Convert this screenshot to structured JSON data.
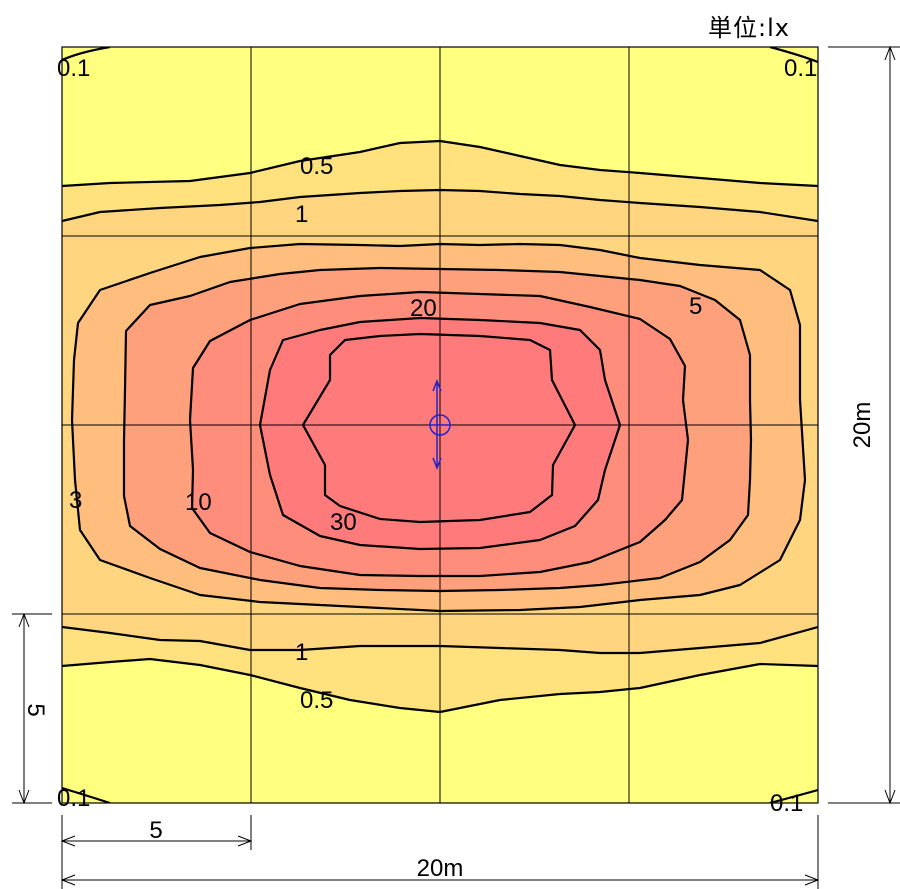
{
  "unit_label": "単位:lx",
  "dimensions": {
    "width_label": "20m",
    "height_label": "20m",
    "grid_spacing_label_x": "5",
    "grid_spacing_label_y": "5"
  },
  "colors": {
    "level_0": "#ffff80",
    "level_0_5": "#ffe17e",
    "level_1": "#ffd580",
    "level_5": "#ffbe7d",
    "level_10": "#ffa07d",
    "level_20": "#ff8d7c",
    "level_30": "#ff7b7b",
    "fixture": "#2222cc"
  },
  "contour_labels": {
    "top_left_corner": "0.1",
    "top_right_corner": "0.1",
    "bottom_left_corner": "0.1",
    "bottom_right_corner": "0.1",
    "top_0_5": "0.5",
    "top_1": "1",
    "bottom_1": "1",
    "bottom_0_5": "0.5",
    "left_3": "3",
    "right_5": "5",
    "inner_10": "10",
    "inner_20": "20",
    "inner_30": "30"
  },
  "fixture": {
    "icon": "light-fixture-icon"
  }
}
